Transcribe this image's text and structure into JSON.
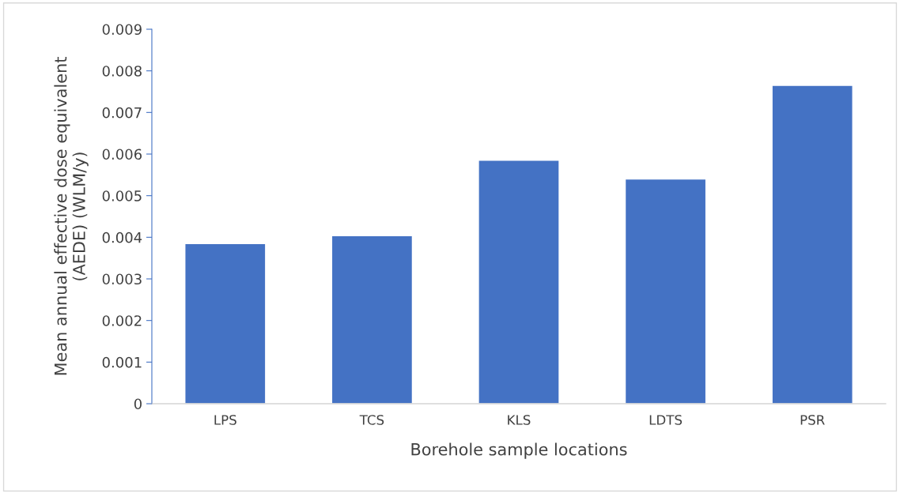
{
  "chart_data": {
    "type": "bar",
    "xlabel": "Borehole sample locations",
    "ylabel": "Mean annual effective dose equivalent\n(AEDE) (WLM/y)",
    "categories": [
      "LPS",
      "TCS",
      "KLS",
      "LDTS",
      "PSR"
    ],
    "values": [
      0.00385,
      0.00404,
      0.00585,
      0.0054,
      0.00765
    ],
    "color": "#4472c4",
    "ylim": [
      0,
      0.009
    ],
    "yticks": [
      {
        "value": 0,
        "label": "0"
      },
      0.001,
      0.002,
      0.003,
      0.004,
      0.005,
      0.006,
      0.007,
      0.008,
      0.009
    ],
    "grid": false
  }
}
